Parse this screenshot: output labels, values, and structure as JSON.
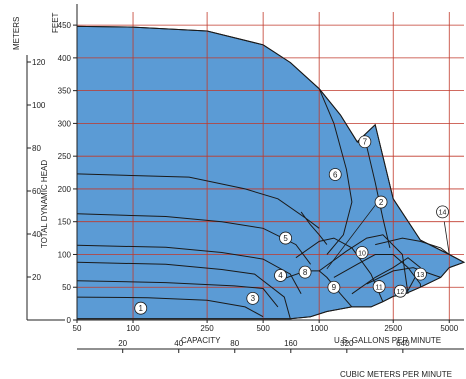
{
  "chart_data": {
    "type": "area",
    "xscale": "log",
    "xlabel_us": "U.S. GALLONS PER MINUTE",
    "xlabel_metric": "CUBIC METERS PER MINUTE",
    "capacity_label": "CAPACITY",
    "ylabel": "TOTAL DYNAMIC HEAD",
    "y_unit_feet": "FEET",
    "y_unit_meters": "METERS",
    "xlim_gpm": [
      50,
      6000
    ],
    "ylim_feet": [
      0,
      470
    ],
    "x_ticks": [
      "50",
      "100",
      "250",
      "500",
      "1000",
      "2500",
      "5000"
    ],
    "x_tick_values": [
      50,
      100,
      250,
      500,
      1000,
      2500,
      5000
    ],
    "grid_x_values": [
      50,
      100,
      250,
      500,
      1000,
      2500,
      5000
    ],
    "y_ticks_feet": [
      "0",
      "50",
      "100",
      "150",
      "200",
      "250",
      "300",
      "350",
      "400",
      "450"
    ],
    "y_tick_values_feet": [
      0,
      50,
      100,
      150,
      200,
      250,
      300,
      350,
      400,
      450
    ],
    "y_ticks_meters": [
      "20",
      "40",
      "60",
      "80",
      "100",
      "120"
    ],
    "y_tick_values_meters": [
      20,
      40,
      60,
      80,
      100,
      120
    ],
    "metric_ticks": [
      "20",
      "40",
      "80",
      "160",
      "320",
      "640"
    ],
    "metric_tick_values": [
      20,
      40,
      80,
      160,
      320,
      640
    ],
    "grid": true,
    "colors": {
      "area": "#5b9bd5",
      "grid": "#c0392b",
      "outline": "#1a1a1a"
    },
    "envelope": [
      [
        50,
        448
      ],
      [
        100,
        447
      ],
      [
        250,
        441
      ],
      [
        500,
        420
      ],
      [
        700,
        393
      ],
      [
        1000,
        353
      ],
      [
        1300,
        313
      ],
      [
        1600,
        272
      ],
      [
        2000,
        298
      ],
      [
        2500,
        185
      ],
      [
        3500,
        122
      ],
      [
        5000,
        100
      ],
      [
        6000,
        88
      ],
      [
        5000,
        80
      ],
      [
        4500,
        65
      ],
      [
        3500,
        50
      ],
      [
        2900,
        40
      ],
      [
        2500,
        36
      ],
      [
        2200,
        28
      ],
      [
        1900,
        20
      ],
      [
        1500,
        20
      ],
      [
        1100,
        13
      ],
      [
        900,
        5
      ],
      [
        700,
        2
      ],
      [
        100,
        2
      ],
      [
        50,
        2
      ]
    ],
    "curves": [
      [
        [
          50,
          223
        ],
        [
          200,
          218
        ],
        [
          400,
          200
        ],
        [
          600,
          185
        ],
        [
          850,
          155
        ],
        [
          1000,
          140
        ]
      ],
      [
        [
          50,
          162
        ],
        [
          150,
          158
        ],
        [
          300,
          150
        ],
        [
          500,
          140
        ],
        [
          750,
          115
        ],
        [
          900,
          85
        ]
      ],
      [
        [
          50,
          114
        ],
        [
          150,
          111
        ],
        [
          300,
          103
        ],
        [
          500,
          93
        ],
        [
          700,
          70
        ],
        [
          800,
          40
        ]
      ],
      [
        [
          50,
          88
        ],
        [
          150,
          85
        ],
        [
          300,
          77
        ],
        [
          450,
          70
        ],
        [
          650,
          35
        ],
        [
          700,
          2
        ]
      ],
      [
        [
          50,
          60
        ],
        [
          150,
          57
        ],
        [
          350,
          52
        ],
        [
          500,
          48
        ],
        [
          600,
          20
        ]
      ],
      [
        [
          50,
          35
        ],
        [
          120,
          34
        ],
        [
          250,
          30
        ],
        [
          400,
          20
        ],
        [
          500,
          5
        ]
      ],
      [
        [
          600,
          60
        ],
        [
          850,
          75
        ],
        [
          1000,
          75
        ],
        [
          1100,
          65
        ],
        [
          1300,
          40
        ],
        [
          1500,
          20
        ]
      ],
      [
        [
          750,
          95
        ],
        [
          1000,
          120
        ],
        [
          1200,
          125
        ],
        [
          1500,
          110
        ],
        [
          1900,
          70
        ],
        [
          2200,
          28
        ]
      ],
      [
        [
          1000,
          75
        ],
        [
          1400,
          105
        ],
        [
          1800,
          125
        ],
        [
          2200,
          130
        ],
        [
          2800,
          100
        ],
        [
          3000,
          40
        ]
      ],
      [
        [
          1200,
          65
        ],
        [
          1600,
          85
        ],
        [
          2000,
          100
        ],
        [
          2500,
          100
        ],
        [
          3000,
          80
        ],
        [
          3500,
          55
        ],
        [
          3500,
          50
        ]
      ],
      [
        [
          1500,
          40
        ],
        [
          2000,
          65
        ],
        [
          2500,
          80
        ],
        [
          3000,
          95
        ],
        [
          3500,
          80
        ],
        [
          3000,
          45
        ]
      ],
      [
        [
          1800,
          55
        ],
        [
          2500,
          75
        ],
        [
          3200,
          80
        ],
        [
          4000,
          70
        ],
        [
          4500,
          65
        ]
      ],
      [
        [
          2000,
          115
        ],
        [
          2800,
          125
        ],
        [
          3500,
          120
        ],
        [
          4500,
          110
        ],
        [
          5000,
          100
        ]
      ],
      [
        [
          1600,
          272
        ],
        [
          1800,
          265
        ],
        [
          2000,
          210
        ],
        [
          2200,
          155
        ],
        [
          2400,
          110
        ]
      ],
      [
        [
          1000,
          353
        ],
        [
          1200,
          300
        ],
        [
          1400,
          230
        ],
        [
          1500,
          180
        ],
        [
          1350,
          130
        ],
        [
          1100,
          100
        ]
      ],
      [
        [
          800,
          165
        ],
        [
          900,
          145
        ],
        [
          1000,
          130
        ],
        [
          1100,
          115
        ]
      ]
    ],
    "markers": [
      {
        "label": "1",
        "x": 110,
        "y": 18
      },
      {
        "label": "2",
        "x": 2150,
        "y": 180
      },
      {
        "label": "3",
        "x": 440,
        "y": 33
      },
      {
        "label": "4",
        "x": 620,
        "y": 68
      },
      {
        "label": "5",
        "x": 660,
        "y": 125
      },
      {
        "label": "6",
        "x": 1220,
        "y": 222
      },
      {
        "label": "7",
        "x": 1760,
        "y": 272
      },
      {
        "label": "8",
        "x": 840,
        "y": 73
      },
      {
        "label": "9",
        "x": 1200,
        "y": 50
      },
      {
        "label": "10",
        "x": 1700,
        "y": 103
      },
      {
        "label": "11",
        "x": 2100,
        "y": 51
      },
      {
        "label": "12",
        "x": 2730,
        "y": 44
      },
      {
        "label": "13",
        "x": 3500,
        "y": 70
      },
      {
        "label": "14",
        "x": 4600,
        "y": 165
      }
    ],
    "marker_pointers": [
      {
        "from": [
          2000,
          175
        ],
        "to": [
          1100,
          78
        ]
      },
      {
        "from": [
          4700,
          150
        ],
        "to": [
          5000,
          100
        ]
      }
    ]
  }
}
